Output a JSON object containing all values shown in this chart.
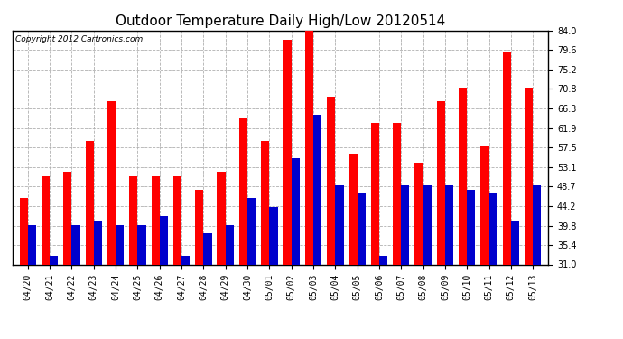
{
  "title": "Outdoor Temperature Daily High/Low 20120514",
  "copyright": "Copyright 2012 Cartronics.com",
  "categories": [
    "04/20",
    "04/21",
    "04/22",
    "04/23",
    "04/24",
    "04/25",
    "04/26",
    "04/27",
    "04/28",
    "04/29",
    "04/30",
    "05/01",
    "05/02",
    "05/03",
    "05/04",
    "05/05",
    "05/06",
    "05/07",
    "05/08",
    "05/09",
    "05/10",
    "05/11",
    "05/12",
    "05/13"
  ],
  "highs": [
    46,
    51,
    52,
    59,
    68,
    51,
    51,
    51,
    48,
    52,
    64,
    59,
    82,
    84,
    69,
    56,
    63,
    63,
    54,
    68,
    71,
    58,
    79,
    71
  ],
  "lows": [
    40,
    33,
    40,
    41,
    40,
    40,
    42,
    33,
    38,
    40,
    46,
    44,
    55,
    65,
    49,
    47,
    33,
    49,
    49,
    49,
    48,
    47,
    41,
    49
  ],
  "ylim": [
    31.0,
    84.0
  ],
  "yticks": [
    31.0,
    35.4,
    39.8,
    44.2,
    48.7,
    53.1,
    57.5,
    61.9,
    66.3,
    70.8,
    75.2,
    79.6,
    84.0
  ],
  "high_color": "#ff0000",
  "low_color": "#0000cc",
  "bg_color": "#ffffff",
  "grid_color": "#b0b0b0",
  "title_fontsize": 11,
  "tick_fontsize": 7,
  "copyright_fontsize": 6.5
}
